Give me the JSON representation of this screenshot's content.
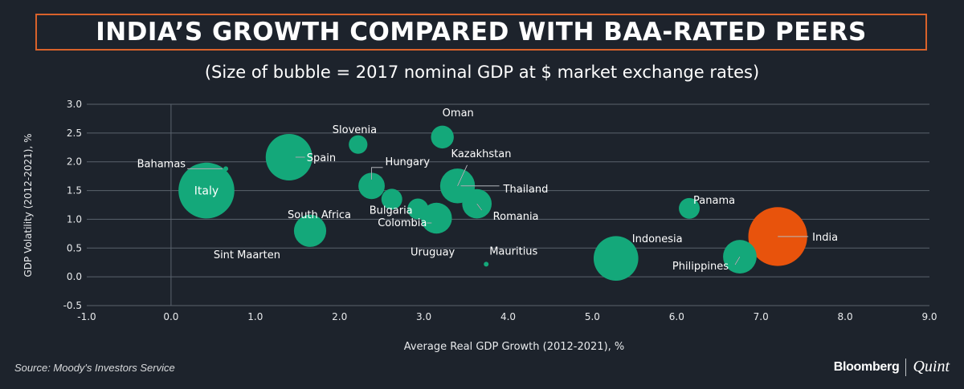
{
  "title": "INDIA’S GROWTH COMPARED WITH BAA-RATED PEERS",
  "subtitle": "(Size of bubble = 2017 nominal GDP at $ market exchange rates)",
  "source": "Source: Moody's Investors Service",
  "brand": {
    "primary": "Bloomberg",
    "secondary": "Quint"
  },
  "colors": {
    "bubble": "#14a87a",
    "highlight": "#e8530c",
    "background": "#1d232c",
    "title_border": "#d9622b"
  },
  "chart_data": {
    "type": "scatter",
    "xlabel": "Average Real GDP Growth (2012-2021), %",
    "ylabel": "GDP Volatility (2012-2021), %",
    "xlim": [
      -1.0,
      9.0
    ],
    "ylim": [
      -0.5,
      3.0
    ],
    "x_ticks": [
      "-1.0",
      "0.0",
      "1.0",
      "2.0",
      "3.0",
      "4.0",
      "5.0",
      "6.0",
      "7.0",
      "8.0",
      "9.0"
    ],
    "y_ticks": [
      "3.0",
      "2.5",
      "2.0",
      "1.5",
      "1.0",
      "0.5",
      "0.0",
      "-0.5"
    ],
    "grid": "horizontal",
    "points": [
      {
        "label": "Italy",
        "x": 0.42,
        "y": 1.5,
        "size": 36,
        "label_inside": true
      },
      {
        "label": "Bahamas",
        "x": 0.65,
        "y": 1.88,
        "size": 2
      },
      {
        "label": "Spain",
        "x": 1.4,
        "y": 2.08,
        "size": 25
      },
      {
        "label": "South Africa",
        "x": 1.65,
        "y": 0.8,
        "size": 12
      },
      {
        "label": "Sint Maarten",
        "x": 1.65,
        "y": 0.8,
        "size": 0,
        "label_only": true
      },
      {
        "label": "Slovenia",
        "x": 2.22,
        "y": 2.3,
        "size": 4
      },
      {
        "label": "Hungary",
        "x": 2.38,
        "y": 1.58,
        "size": 8
      },
      {
        "label": "Bulgaria",
        "x": 2.62,
        "y": 1.35,
        "size": 5
      },
      {
        "label": "Uruguay",
        "x": 2.93,
        "y": 1.18,
        "size": 5
      },
      {
        "label": "Colombia",
        "x": 3.15,
        "y": 1.02,
        "size": 11
      },
      {
        "label": "Oman",
        "x": 3.22,
        "y": 2.43,
        "size": 6
      },
      {
        "label": "Kazakhstan",
        "x": 3.4,
        "y": 1.58,
        "size": 14
      },
      {
        "label": "Thailand",
        "x": 3.4,
        "y": 1.58,
        "size": 0,
        "label_only": true
      },
      {
        "label": "Romania",
        "x": 3.63,
        "y": 1.27,
        "size": 10
      },
      {
        "label": "Mauritius",
        "x": 3.74,
        "y": 0.22,
        "size": 2
      },
      {
        "label": "Indonesia",
        "x": 5.28,
        "y": 0.32,
        "size": 23
      },
      {
        "label": "Panama",
        "x": 6.15,
        "y": 1.19,
        "size": 5
      },
      {
        "label": "Philippines",
        "x": 6.75,
        "y": 0.35,
        "size": 13
      },
      {
        "label": "India",
        "x": 7.2,
        "y": 0.7,
        "size": 40,
        "highlight": true
      }
    ]
  }
}
